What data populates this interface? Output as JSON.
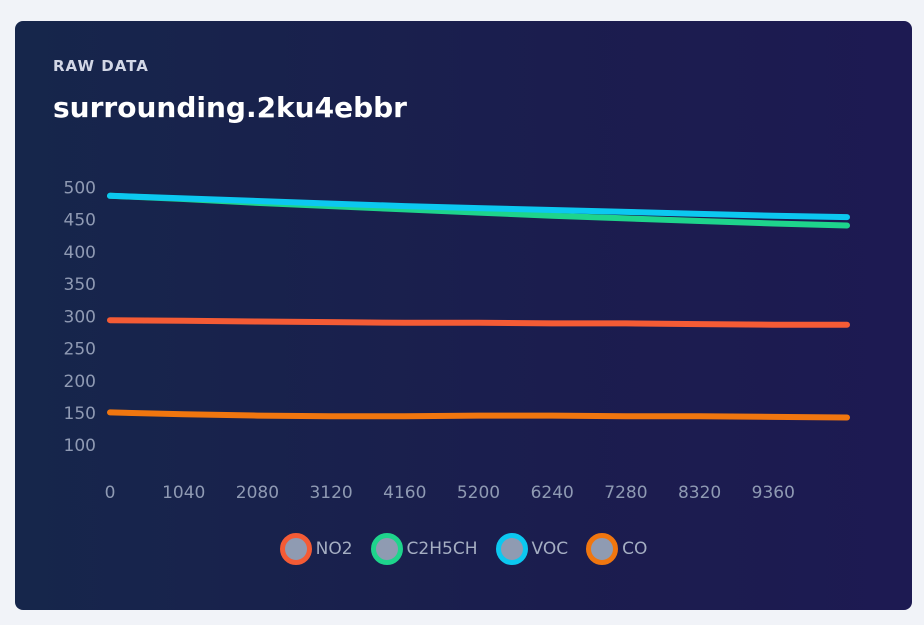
{
  "card": {
    "eyebrow": "RAW DATA",
    "title": "surrounding.2ku4ebbr"
  },
  "chart_data": {
    "type": "line",
    "title": "",
    "xlabel": "",
    "ylabel": "",
    "xlim": [
      0,
      10400
    ],
    "ylim": [
      60,
      510
    ],
    "x_ticks": [
      0,
      1040,
      2080,
      3120,
      4160,
      5200,
      6240,
      7280,
      8320,
      9360
    ],
    "y_ticks": [
      100,
      150,
      200,
      250,
      300,
      350,
      400,
      450,
      500
    ],
    "grid": false,
    "legend_position": "bottom",
    "series": [
      {
        "name": "NO2",
        "color": "#f45b35",
        "x": [
          0,
          1040,
          2080,
          3120,
          4160,
          5200,
          6240,
          7280,
          8320,
          9360,
          10400
        ],
        "values": [
          294,
          293,
          292,
          291,
          290,
          290,
          289,
          289,
          288,
          287,
          287
        ]
      },
      {
        "name": "C2H5CH",
        "color": "#1ed48c",
        "x": [
          0,
          1040,
          2080,
          3120,
          4160,
          5200,
          6240,
          7280,
          8320,
          9360,
          10400
        ],
        "values": [
          487,
          482,
          476,
          471,
          466,
          461,
          456,
          452,
          448,
          444,
          441
        ]
      },
      {
        "name": "VOC",
        "color": "#0cc8f0",
        "x": [
          0,
          1040,
          2080,
          3120,
          4160,
          5200,
          6240,
          7280,
          8320,
          9360,
          10400
        ],
        "values": [
          487,
          483,
          479,
          475,
          471,
          468,
          465,
          462,
          459,
          456,
          454
        ]
      },
      {
        "name": "CO",
        "color": "#f0760f",
        "x": [
          0,
          1040,
          2080,
          3120,
          4160,
          5200,
          6240,
          7280,
          8320,
          9360,
          10400
        ],
        "values": [
          151,
          148,
          146,
          145,
          145,
          146,
          146,
          145,
          145,
          144,
          143
        ]
      }
    ]
  }
}
